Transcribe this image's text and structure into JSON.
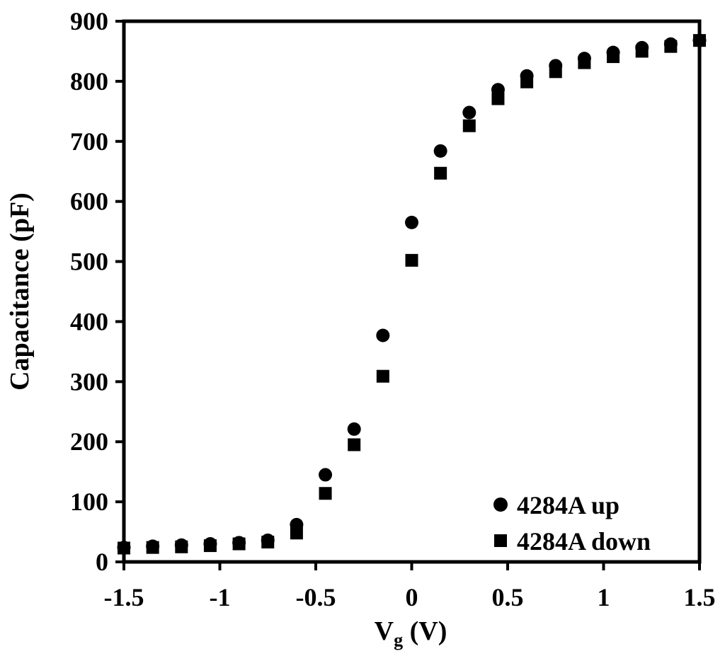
{
  "chart_data": {
    "type": "scatter",
    "xlabel": "V",
    "xlabel_sub": "g",
    "xlabel_unit": " (V)",
    "ylabel": "Capacitance (pF)",
    "xlim": [
      -1.5,
      1.5
    ],
    "ylim": [
      0,
      900
    ],
    "xticks": [
      -1.5,
      -1,
      -0.5,
      0,
      0.5,
      1,
      1.5
    ],
    "xtick_labels": [
      "-1.5",
      "-1",
      "-0.5",
      "0",
      "0.5",
      "1",
      "1.5"
    ],
    "yticks": [
      0,
      100,
      200,
      300,
      400,
      500,
      600,
      700,
      800,
      900
    ],
    "ytick_labels": [
      "0",
      "100",
      "200",
      "300",
      "400",
      "500",
      "600",
      "700",
      "800",
      "900"
    ],
    "grid": false,
    "legend_position": "bottom-right",
    "series": [
      {
        "name": "4284A up",
        "marker": "circle",
        "color": "#000000",
        "x": [
          -1.5,
          -1.35,
          -1.2,
          -1.05,
          -0.9,
          -0.75,
          -0.6,
          -0.45,
          -0.3,
          -0.15,
          0,
          0.15,
          0.3,
          0.45,
          0.6,
          0.75,
          0.9,
          1.05,
          1.2,
          1.35,
          1.5
        ],
        "y": [
          24,
          26,
          28,
          30,
          32,
          36,
          62,
          145,
          221,
          377,
          565,
          684,
          748,
          786,
          809,
          826,
          838,
          848,
          856,
          862,
          868
        ]
      },
      {
        "name": "4284A down",
        "marker": "square",
        "color": "#000000",
        "x": [
          -1.5,
          -1.35,
          -1.2,
          -1.05,
          -0.9,
          -0.75,
          -0.6,
          -0.45,
          -0.3,
          -0.15,
          0,
          0.15,
          0.3,
          0.45,
          0.6,
          0.75,
          0.9,
          1.05,
          1.2,
          1.35,
          1.5
        ],
        "y": [
          23,
          24,
          25,
          27,
          30,
          33,
          48,
          114,
          195,
          309,
          502,
          647,
          726,
          771,
          799,
          816,
          831,
          841,
          850,
          858,
          868
        ]
      }
    ]
  }
}
